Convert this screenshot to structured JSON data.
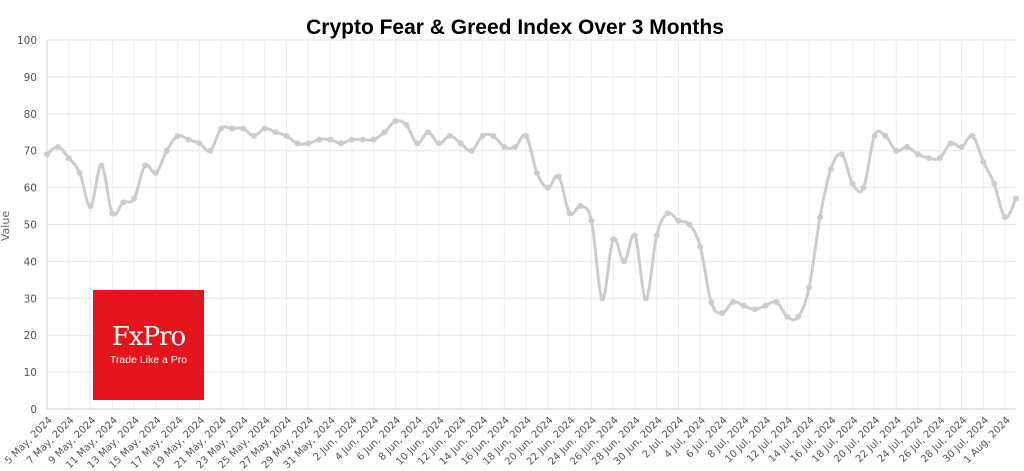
{
  "chart_data": {
    "type": "line",
    "title": "Crypto Fear & Greed Index Over 3 Months",
    "ylabel": "Value",
    "xlabel": "",
    "ylim": [
      0,
      100
    ],
    "yticks": [
      0,
      10,
      20,
      30,
      40,
      50,
      60,
      70,
      80,
      90,
      100
    ],
    "grid": true,
    "line_color": "#cccccc",
    "x_tick_labels": [
      "5 May, 2024",
      "7 May, 2024",
      "9 May, 2024",
      "11 May, 2024",
      "13 May, 2024",
      "15 May, 2024",
      "17 May, 2024",
      "19 May, 2024",
      "21 May, 2024",
      "23 May, 2024",
      "25 May, 2024",
      "27 May, 2024",
      "29 May, 2024",
      "31 May, 2024",
      "2 Jun, 2024",
      "4 Jun, 2024",
      "6 Jun, 2024",
      "8 Jun, 2024",
      "10 Jun, 2024",
      "12 Jun, 2024",
      "14 Jun, 2024",
      "16 Jun, 2024",
      "18 Jun, 2024",
      "20 Jun, 2024",
      "22 Jun, 2024",
      "24 Jun, 2024",
      "26 Jun, 2024",
      "28 Jun, 2024",
      "30 Jun, 2024",
      "2 Jul, 2024",
      "4 Jul, 2024",
      "6 Jul, 2024",
      "8 Jul, 2024",
      "10 Jul, 2024",
      "12 Jul, 2024",
      "14 Jul, 2024",
      "16 Jul, 2024",
      "18 Jul, 2024",
      "20 Jul, 2024",
      "22 Jul, 2024",
      "24 Jul, 2024",
      "26 Jul, 2024",
      "28 Jul, 2024",
      "30 Jul, 2024",
      "1 Aug, 2024"
    ],
    "start_date": "5 May, 2024",
    "values": [
      69,
      71,
      68,
      64,
      55,
      66,
      53,
      56,
      57,
      66,
      64,
      70,
      74,
      73,
      72,
      70,
      76,
      76,
      76,
      74,
      76,
      75,
      74,
      72,
      72,
      73,
      73,
      72,
      73,
      73,
      73,
      75,
      78,
      77,
      72,
      75,
      72,
      74,
      72,
      70,
      74,
      74,
      71,
      71,
      74,
      64,
      60,
      63,
      53,
      55,
      51,
      30,
      46,
      40,
      47,
      30,
      47,
      53,
      51,
      50,
      44,
      29,
      26,
      29,
      28,
      27,
      28,
      29,
      25,
      25,
      33,
      52,
      65,
      69,
      61,
      60,
      74,
      74,
      70,
      71,
      69,
      68,
      68,
      72,
      71,
      74,
      67,
      61,
      52,
      57
    ]
  },
  "logo": {
    "brand": "FxPro",
    "tagline": "Trade Like a Pro",
    "color": "#e3141b"
  }
}
